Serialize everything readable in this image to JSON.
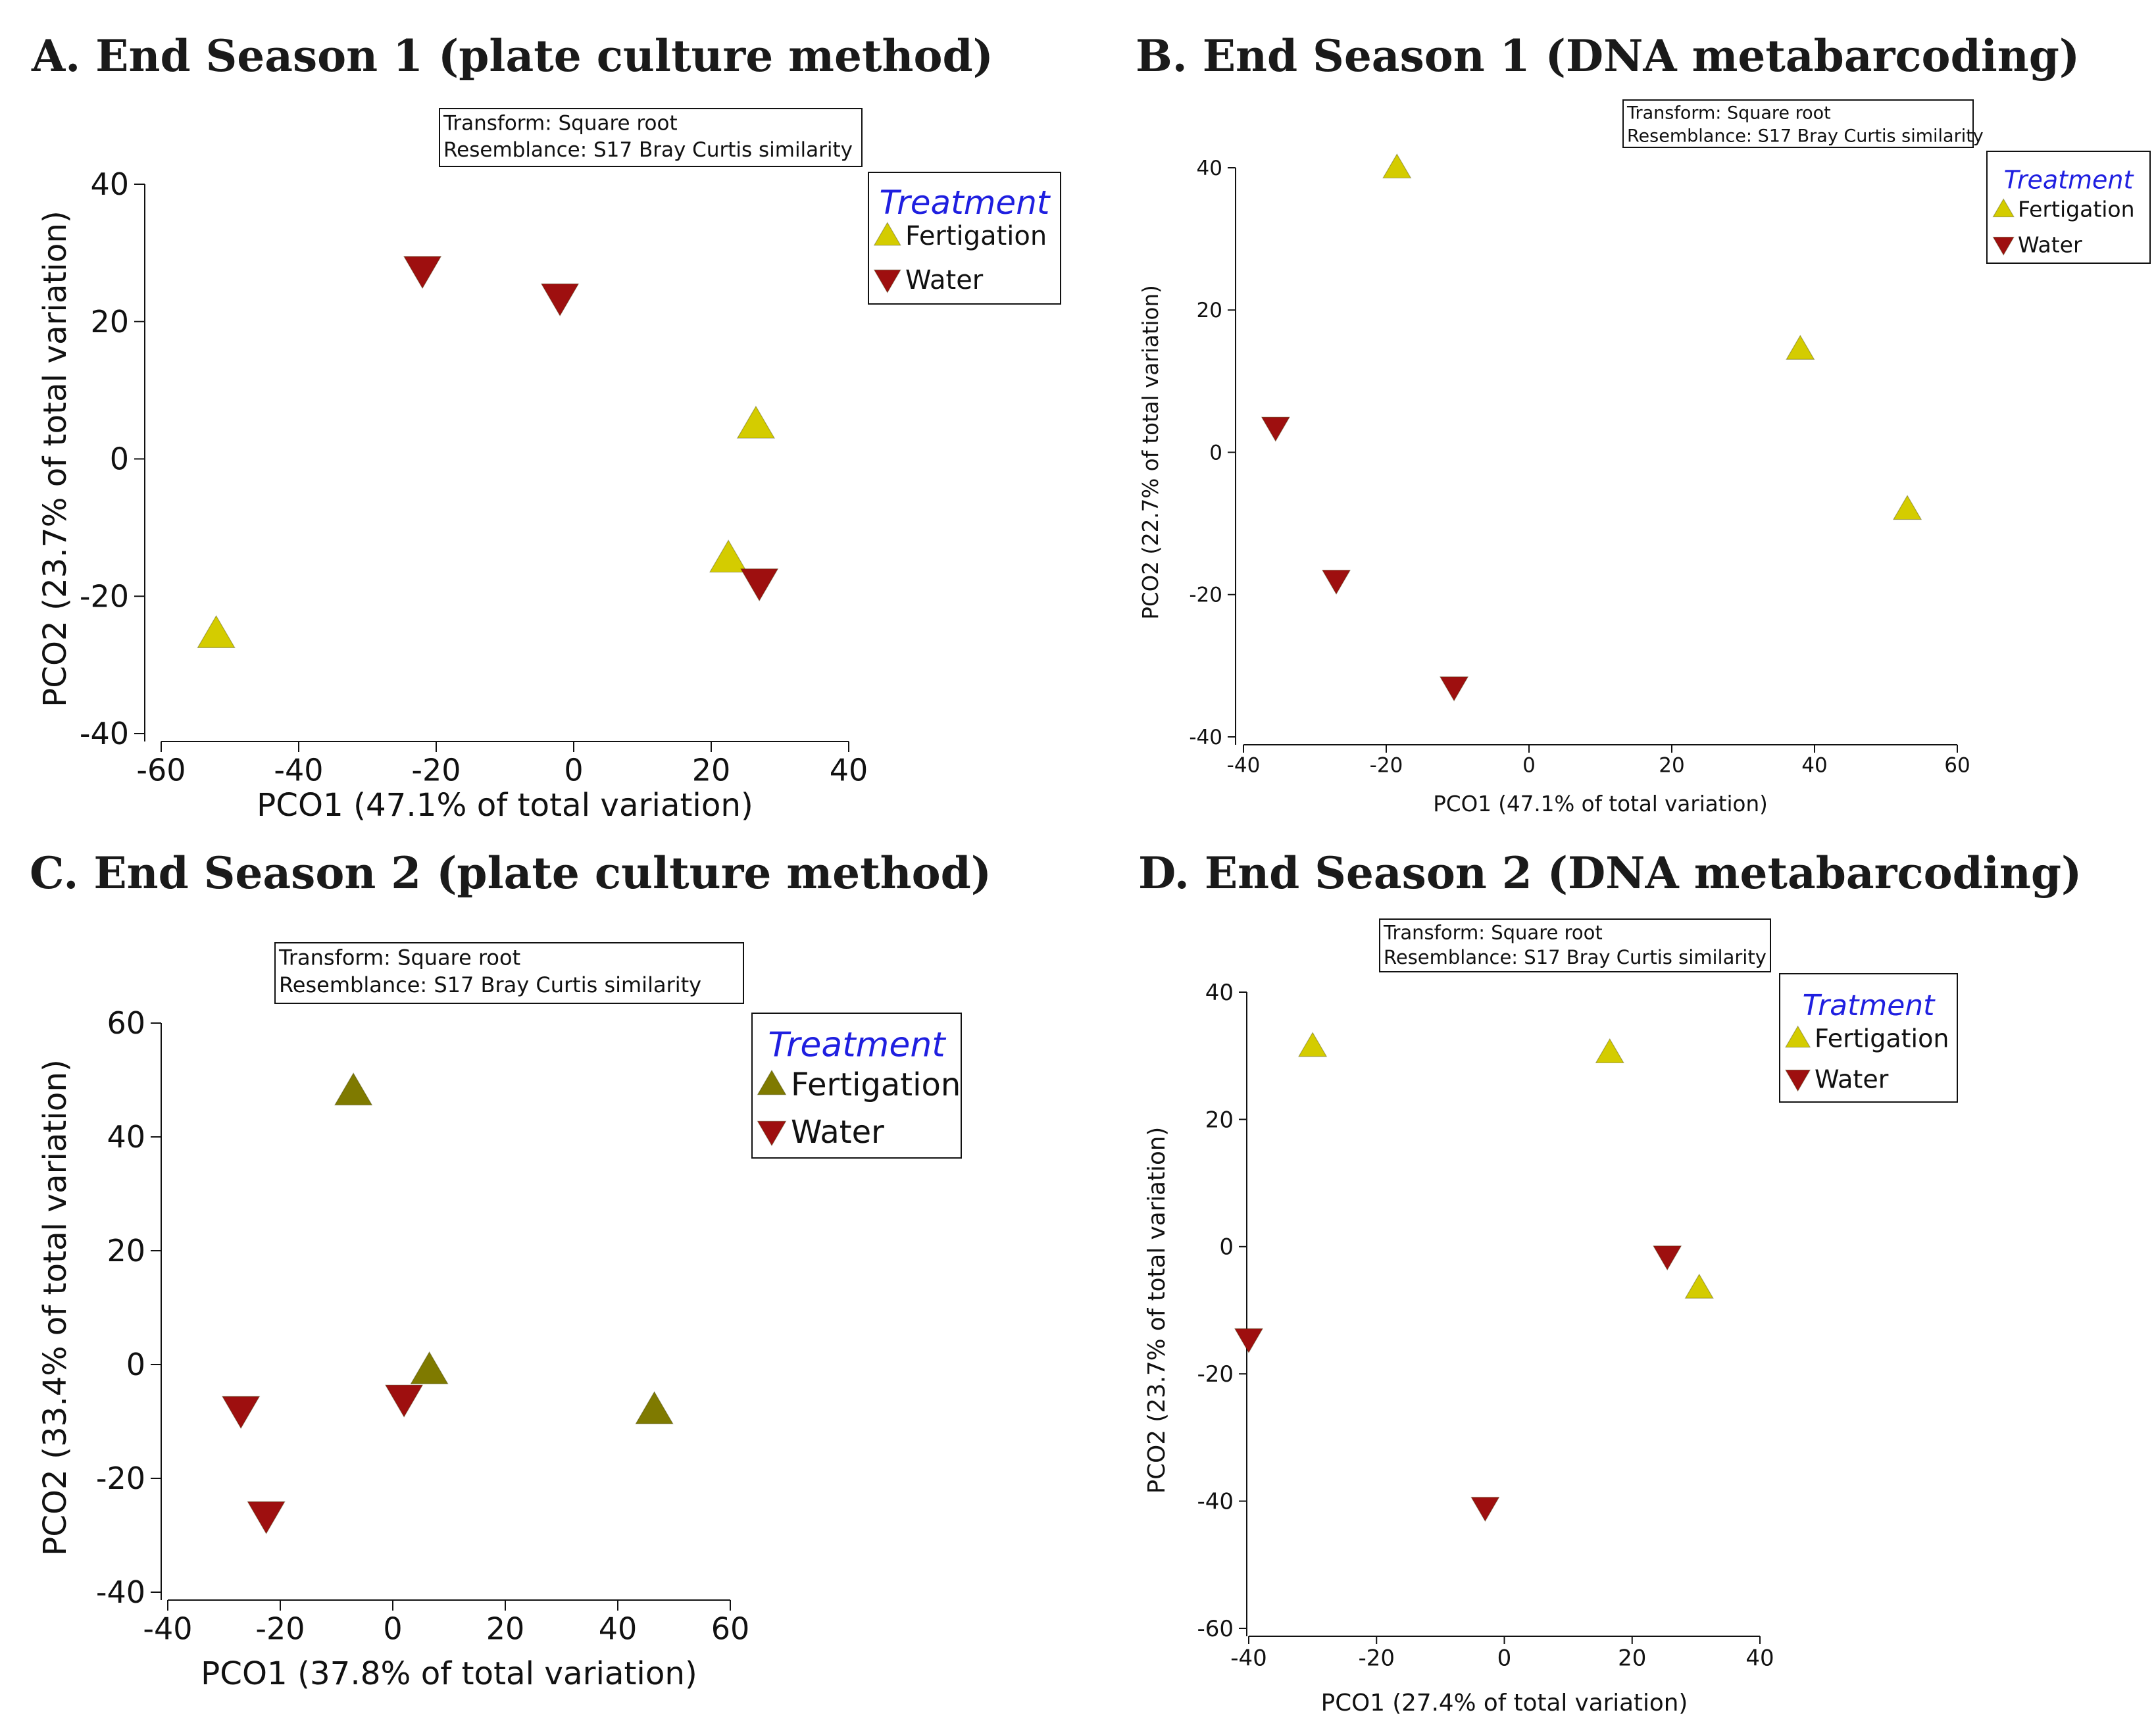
{
  "colors": {
    "fertigation_light": "#d4cc00",
    "fertigation_olive": "#7f7a00",
    "water": "#9e0f0f",
    "legend_title": "#1f1fe0",
    "axis": "#111111"
  },
  "chart_data": [
    {
      "type": "scatter",
      "panel": "A",
      "title": "A. End Season 1 (plate culture method)",
      "xlabel": "PCO1 (47.1% of total variation)",
      "ylabel": "PCO2 (23.7% of total variation)",
      "xlim": [
        -60,
        40
      ],
      "ylim": [
        -40,
        40
      ],
      "xticks": [
        "-60",
        "-40",
        "-20",
        "0",
        "20",
        "40"
      ],
      "yticks": [
        "40",
        "20",
        "0",
        "-20",
        "-40"
      ],
      "annotation": [
        "Transform: Square root",
        "Resemblance: S17 Bray Curtis similarity"
      ],
      "legend_title": "Treatment",
      "series": [
        {
          "name": "Fertigation",
          "marker": "triangle-up",
          "color": "#d4cc00",
          "points": [
            [
              -52,
              -25.5
            ],
            [
              22.5,
              -14.5
            ],
            [
              26.5,
              5
            ]
          ]
        },
        {
          "name": "Water",
          "marker": "triangle-down",
          "color": "#9e0f0f",
          "points": [
            [
              -22,
              27.5
            ],
            [
              -2,
              23.5
            ],
            [
              27,
              -18
            ]
          ]
        }
      ]
    },
    {
      "type": "scatter",
      "panel": "B",
      "title": "B. End Season 1 (DNA metabarcoding)",
      "xlabel": "PCO1 (47.1% of total variation)",
      "ylabel": "PCO2 (22.7% of total variation)",
      "xlim": [
        -40,
        60
      ],
      "ylim": [
        -40,
        40
      ],
      "xticks": [
        "-40",
        "-20",
        "0",
        "20",
        "40",
        "60"
      ],
      "yticks": [
        "40",
        "20",
        "0",
        "-20",
        "-40"
      ],
      "annotation": [
        "Transform: Square root",
        "Resemblance: S17 Bray Curtis similarity"
      ],
      "legend_title": "Treatment",
      "series": [
        {
          "name": "Fertigation",
          "marker": "triangle-up",
          "color": "#d4cc00",
          "points": [
            [
              -18.5,
              40
            ],
            [
              38,
              14.5
            ],
            [
              53,
              -8
            ]
          ]
        },
        {
          "name": "Water",
          "marker": "triangle-down",
          "color": "#9e0f0f",
          "points": [
            [
              -35.5,
              3.5
            ],
            [
              -27,
              -18
            ],
            [
              -10.5,
              -33
            ]
          ]
        }
      ]
    },
    {
      "type": "scatter",
      "panel": "C",
      "title": "C. End Season 2 (plate culture method)",
      "xlabel": "PCO1 (37.8% of total variation)",
      "ylabel": "PCO2 (33.4% of total variation)",
      "xlim": [
        -40,
        60
      ],
      "ylim": [
        -40,
        60
      ],
      "xticks": [
        "-40",
        "-20",
        "0",
        "20",
        "40",
        "60"
      ],
      "yticks": [
        "60",
        "40",
        "20",
        "0",
        "-20",
        "-40"
      ],
      "annotation": [
        "Transform: Square root",
        "Resemblance: S17 Bray Curtis similarity"
      ],
      "legend_title": "Treatment",
      "series": [
        {
          "name": "Fertigation",
          "marker": "triangle-up",
          "color": "#7f7a00",
          "points": [
            [
              -7,
              48
            ],
            [
              6.5,
              -1
            ],
            [
              46.5,
              -8
            ]
          ]
        },
        {
          "name": "Water",
          "marker": "triangle-down",
          "color": "#9e0f0f",
          "points": [
            [
              -27,
              -8
            ],
            [
              -22.5,
              -26.5
            ],
            [
              2,
              -6
            ]
          ]
        }
      ]
    },
    {
      "type": "scatter",
      "panel": "D",
      "title": "D. End Season 2 (DNA metabarcoding)",
      "xlabel": "PCO1 (27.4% of total variation)",
      "ylabel": "PCO2 (23.7% of total variation)",
      "xlim": [
        -40,
        40
      ],
      "ylim": [
        -60,
        40
      ],
      "xticks": [
        "-40",
        "-20",
        "0",
        "20",
        "40"
      ],
      "yticks": [
        "40",
        "20",
        "0",
        "-20",
        "-40",
        "-60"
      ],
      "annotation": [
        "Transform: Square root",
        "Resemblance: S17 Bray Curtis similarity"
      ],
      "legend_title": "Tratment",
      "series": [
        {
          "name": "Fertigation",
          "marker": "triangle-up",
          "color": "#d4cc00",
          "points": [
            [
              -30,
              31.5
            ],
            [
              16.5,
              30.5
            ],
            [
              30.5,
              -6.5
            ]
          ]
        },
        {
          "name": "Water",
          "marker": "triangle-down",
          "color": "#9e0f0f",
          "points": [
            [
              -40,
              -14.5
            ],
            [
              -3,
              -41
            ],
            [
              25.5,
              -1.5
            ]
          ]
        }
      ]
    }
  ]
}
